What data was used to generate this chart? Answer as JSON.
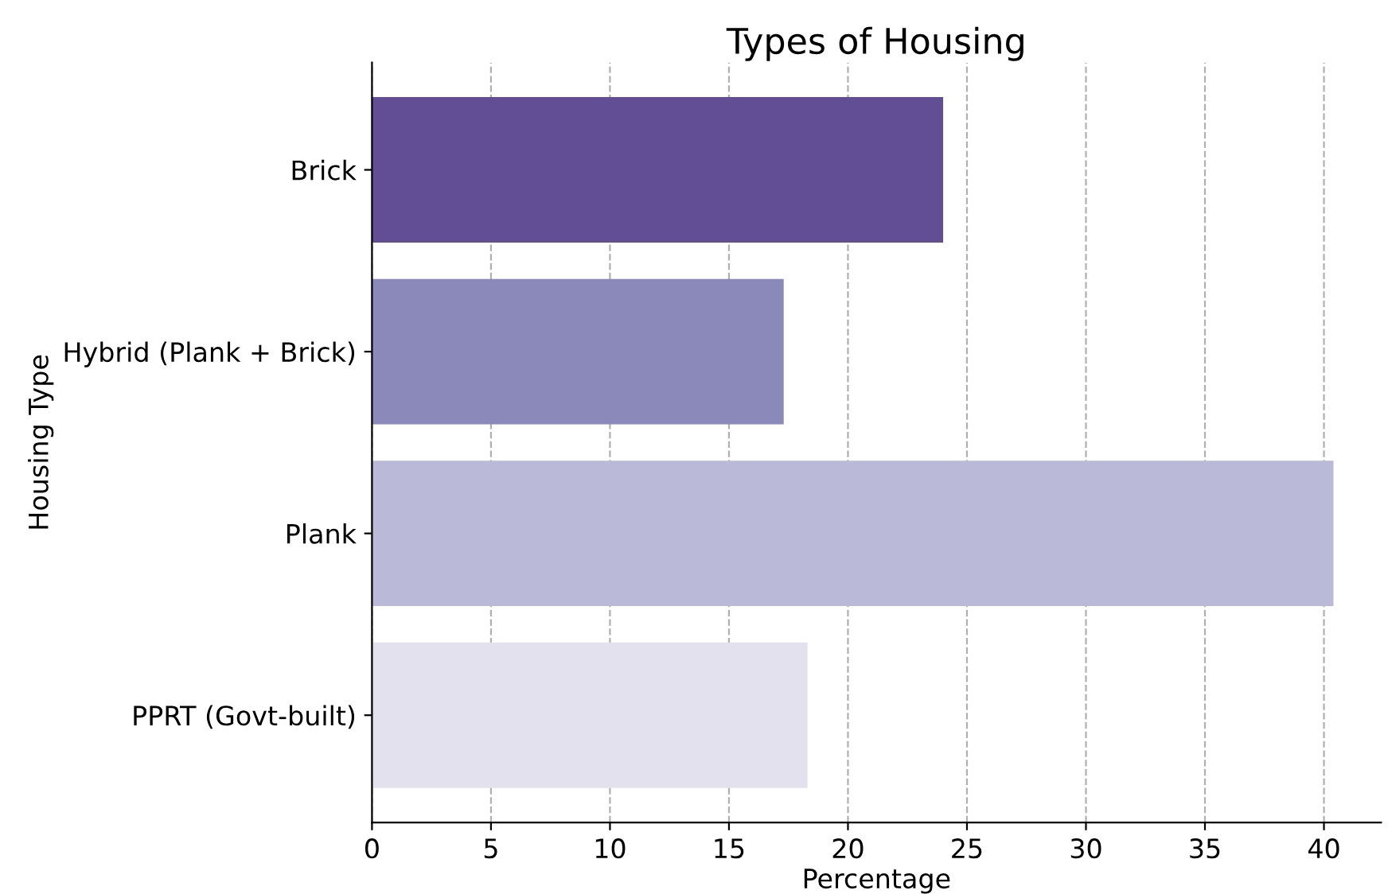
{
  "chart_data": {
    "type": "bar",
    "orientation": "horizontal",
    "title": "Types of Housing",
    "xlabel": "Percentage",
    "ylabel": "Housing Type",
    "categories": [
      "Brick",
      "Hybrid (Plank + Brick)",
      "Plank",
      "PPRT (Govt-built)"
    ],
    "values": [
      24.0,
      17.3,
      40.4,
      18.3
    ],
    "colors": [
      "#624e94",
      "#8a89b9",
      "#bab9d8",
      "#e3e1ee"
    ],
    "xlim": [
      0,
      42.4
    ],
    "xticks": [
      0,
      5,
      10,
      15,
      20,
      25,
      30,
      35,
      40
    ],
    "grid": "x"
  }
}
